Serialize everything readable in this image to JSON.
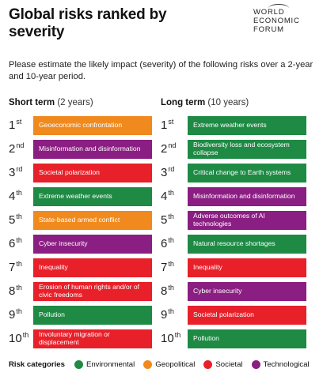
{
  "title": "Global risks ranked by severity",
  "logo": {
    "lines": [
      "WORLD",
      "ECONOMIC",
      "FORUM"
    ]
  },
  "subtitle": "Please estimate the likely impact (severity) of the following risks over a 2-year and 10-year period.",
  "colors": {
    "Environmental": "#1e8a44",
    "Geopolitical": "#f08a1e",
    "Societal": "#e8202a",
    "Technological": "#8a1e82"
  },
  "legend_title": "Risk categories",
  "legend": [
    "Environmental",
    "Geopolitical",
    "Societal",
    "Technological"
  ],
  "chart_data": {
    "type": "table",
    "title": "Global risks ranked by severity",
    "ranks": [
      {
        "n": "1",
        "suf": "st"
      },
      {
        "n": "2",
        "suf": "nd"
      },
      {
        "n": "3",
        "suf": "rd"
      },
      {
        "n": "4",
        "suf": "th"
      },
      {
        "n": "5",
        "suf": "th"
      },
      {
        "n": "6",
        "suf": "th"
      },
      {
        "n": "7",
        "suf": "th"
      },
      {
        "n": "8",
        "suf": "th"
      },
      {
        "n": "9",
        "suf": "th"
      },
      {
        "n": "10",
        "suf": "th"
      }
    ],
    "columns": [
      {
        "label": "Short term",
        "sublabel": "(2 years)",
        "risks": [
          {
            "name": "Geoeconomic confrontation",
            "category": "Geopolitical"
          },
          {
            "name": "Misinformation and disinformation",
            "category": "Technological"
          },
          {
            "name": "Societal polarization",
            "category": "Societal"
          },
          {
            "name": "Extreme weather events",
            "category": "Environmental"
          },
          {
            "name": "State-based armed conflict",
            "category": "Geopolitical"
          },
          {
            "name": "Cyber insecurity",
            "category": "Technological"
          },
          {
            "name": "Inequality",
            "category": "Societal"
          },
          {
            "name": "Erosion of human rights and/or of civic freedoms",
            "category": "Societal"
          },
          {
            "name": "Pollution",
            "category": "Environmental"
          },
          {
            "name": "Involuntary migration or displacement",
            "category": "Societal"
          }
        ]
      },
      {
        "label": "Long term",
        "sublabel": "(10 years)",
        "risks": [
          {
            "name": "Extreme weather events",
            "category": "Environmental"
          },
          {
            "name": "Biodiversity loss and ecosystem collapse",
            "category": "Environmental"
          },
          {
            "name": "Critical change to Earth systems",
            "category": "Environmental"
          },
          {
            "name": "Misinformation and disinformation",
            "category": "Technological"
          },
          {
            "name": "Adverse outcomes of AI technologies",
            "category": "Technological"
          },
          {
            "name": "Natural resource shortages",
            "category": "Environmental"
          },
          {
            "name": "Inequality",
            "category": "Societal"
          },
          {
            "name": "Cyber insecurity",
            "category": "Technological"
          },
          {
            "name": "Societal polarization",
            "category": "Societal"
          },
          {
            "name": "Pollution",
            "category": "Environmental"
          }
        ]
      }
    ]
  }
}
